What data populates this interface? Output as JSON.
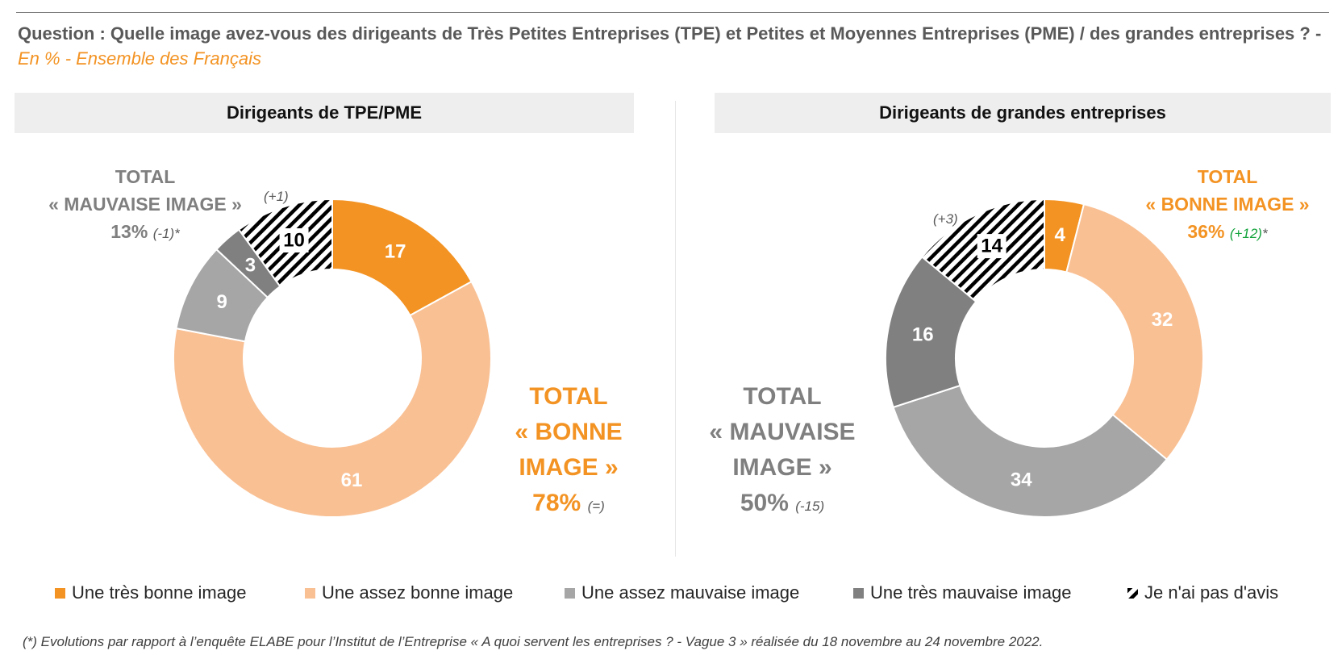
{
  "question": {
    "text": "Question : Quelle image avez-vous des dirigeants de Très Petites Entreprises (TPE) et Petites et Moyennes Entreprises (PME) / des grandes entreprises ? - ",
    "subtitle": "En % - Ensemble des Français"
  },
  "colors": {
    "tres_bonne": "#f39323",
    "assez_bonne": "#f9c094",
    "assez_mauvaise": "#a6a6a6",
    "tres_mauvaise": "#808080",
    "sans_avis": "hatch-black-white"
  },
  "chart_data": [
    {
      "type": "pie",
      "variant": "donut",
      "title": "Dirigeants de TPE/PME",
      "categories": [
        "Une très bonne image",
        "Une assez bonne image",
        "Une assez mauvaise image",
        "Une très mauvaise image",
        "Je n'ai pas d'avis"
      ],
      "values": [
        17,
        61,
        9,
        3,
        10
      ],
      "annotations": [
        {
          "label": "TOTAL « MAUVAISE IMAGE »",
          "value": "13%",
          "evolution": "(-1)*"
        },
        {
          "label": "TOTAL « BONNE IMAGE »",
          "value": "78%",
          "evolution": "(=)"
        },
        {
          "target": "Je n'ai pas d'avis",
          "evolution": "(+1)"
        }
      ]
    },
    {
      "type": "pie",
      "variant": "donut",
      "title": "Dirigeants de grandes entreprises",
      "categories": [
        "Une très bonne image",
        "Une assez bonne image",
        "Une assez mauvaise image",
        "Une très mauvaise image",
        "Je n'ai pas d'avis"
      ],
      "values": [
        4,
        32,
        34,
        16,
        14
      ],
      "annotations": [
        {
          "label": "TOTAL « BONNE IMAGE »",
          "value": "36%",
          "evolution": "(+12)*"
        },
        {
          "label": "TOTAL « MAUVAISE IMAGE »",
          "value": "50%",
          "evolution": "(-15)"
        },
        {
          "target": "Je n'ai pas d'avis",
          "evolution": "(+3)"
        }
      ]
    }
  ],
  "totals": {
    "left_mauvaise": {
      "line1": "TOTAL",
      "line2": "« MAUVAISE IMAGE »",
      "value": "13%",
      "evo": "(-1)*"
    },
    "left_bonne": {
      "line1": "TOTAL",
      "line2": "« BONNE",
      "line3": "IMAGE »",
      "value": "78%",
      "evo": "(=)"
    },
    "left_avis_evo": "(+1)",
    "right_bonne": {
      "line1": "TOTAL",
      "line2": "« BONNE IMAGE »",
      "value": "36%",
      "evo": "(+12)",
      "evo_suffix": "*"
    },
    "right_mauvaise": {
      "line1": "TOTAL",
      "line2": "« MAUVAISE",
      "line3": "IMAGE »",
      "value": "50%",
      "evo": "(-15)"
    },
    "right_avis_evo": "(+3)"
  },
  "legend": [
    "Une très bonne image",
    "Une assez bonne image",
    "Une assez mauvaise image",
    "Une très mauvaise image",
    "Je n'ai pas d'avis"
  ],
  "footnote": {
    "start": "(*) Evolutions par rapport à l’enquête ELABE pour l’Institut de l’Entreprise « ",
    "title": "A quoi servent les entreprises ? - Vague 3",
    "end": " » réalisée du 18 novembre au 24 novembre 2022."
  }
}
